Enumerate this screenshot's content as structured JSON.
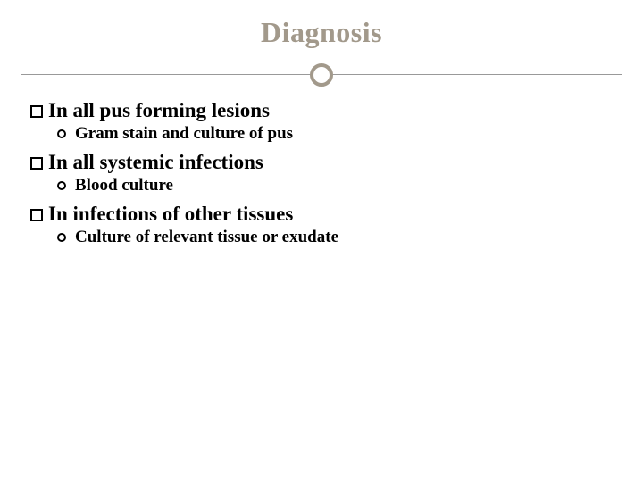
{
  "title": "Diagnosis",
  "items": [
    {
      "main": "In all pus forming lesions",
      "sub": "Gram stain and culture of pus"
    },
    {
      "main": "In all systemic infections",
      "sub": "Blood culture"
    },
    {
      "main": "In infections of other tissues",
      "sub": "Culture of relevant tissue or exudate"
    }
  ],
  "colors": {
    "title_color": "#a2998b",
    "circle_border": "#a2998b",
    "line_color": "#999999",
    "text_color": "#000000",
    "background": "#ffffff"
  },
  "typography": {
    "title_fontsize": 32,
    "main_fontsize": 23,
    "sub_fontsize": 19,
    "font_family": "Georgia"
  }
}
